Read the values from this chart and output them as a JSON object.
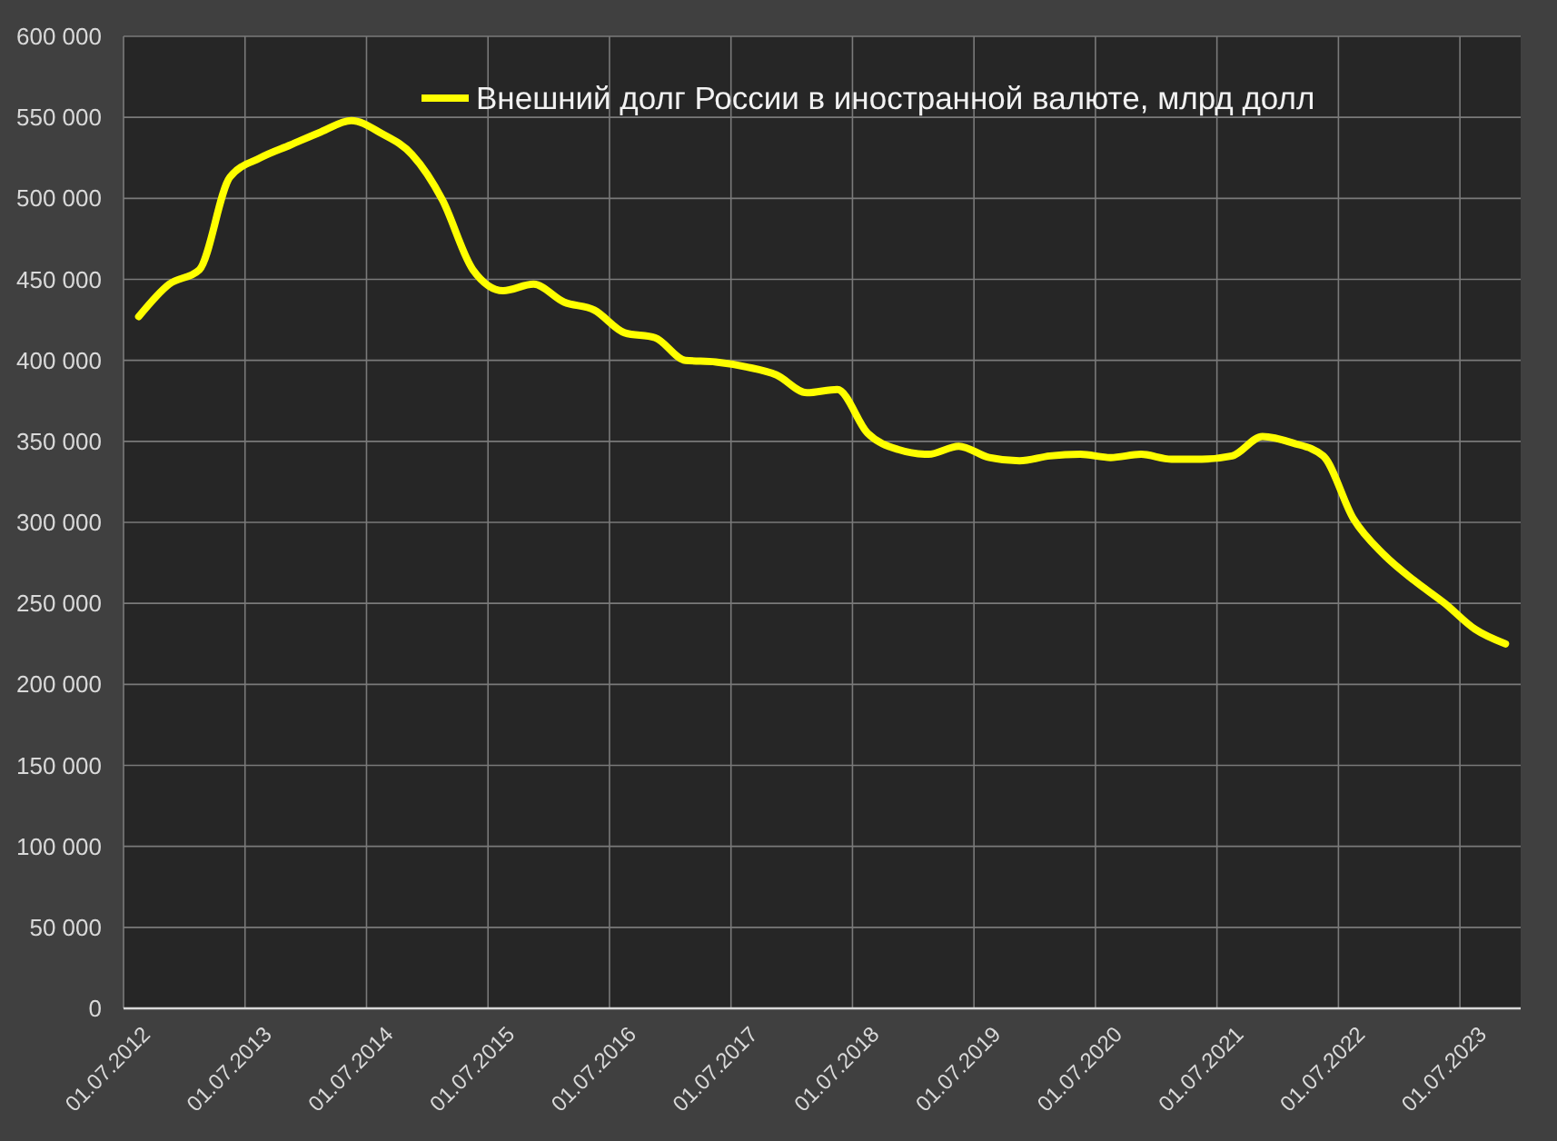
{
  "chart_data": {
    "type": "line",
    "categories": [
      "01.07.2012",
      null,
      null,
      null,
      "01.07.2013",
      null,
      null,
      null,
      "01.07.2014",
      null,
      null,
      null,
      "01.07.2015",
      null,
      null,
      null,
      "01.07.2016",
      null,
      null,
      null,
      "01.07.2017",
      null,
      null,
      null,
      "01.07.2018",
      null,
      null,
      null,
      "01.07.2019",
      null,
      null,
      null,
      "01.07.2020",
      null,
      null,
      null,
      "01.07.2021",
      null,
      null,
      null,
      "01.07.2022",
      null,
      null,
      null,
      "01.07.2023",
      null
    ],
    "series": [
      {
        "name": "Внешний долг России в иностранной валюте, млрд долл",
        "color": "#ffff00",
        "values": [
          427000,
          447000,
          456000,
          513000,
          525000,
          533000,
          541000,
          548000,
          540000,
          527000,
          499000,
          456000,
          443000,
          447000,
          436000,
          431000,
          417000,
          414000,
          400000,
          399000,
          396000,
          391000,
          380000,
          382000,
          355000,
          345000,
          342000,
          347000,
          340000,
          338000,
          341000,
          342000,
          340000,
          342000,
          339000,
          339000,
          341000,
          353000,
          349000,
          341000,
          302000,
          280000,
          264000,
          250000,
          234000,
          225000
        ]
      }
    ],
    "ylim": [
      0,
      600000
    ],
    "yticks": [
      0,
      {
        "value": 50000,
        "label": "50 000"
      },
      {
        "value": 100000,
        "label": "100 000"
      },
      {
        "value": 150000,
        "label": "150 000"
      },
      {
        "value": 200000,
        "label": "200 000"
      },
      {
        "value": 250000,
        "label": "250 000"
      },
      {
        "value": 300000,
        "label": "300 000"
      },
      {
        "value": 350000,
        "label": "350 000"
      },
      {
        "value": 400000,
        "label": "400 000"
      },
      {
        "value": 450000,
        "label": "450 000"
      },
      {
        "value": 500000,
        "label": "500 000"
      },
      {
        "value": 550000,
        "label": "550 000"
      },
      {
        "value": 600000,
        "label": "600 000"
      }
    ],
    "grid": true,
    "legend": "top"
  }
}
